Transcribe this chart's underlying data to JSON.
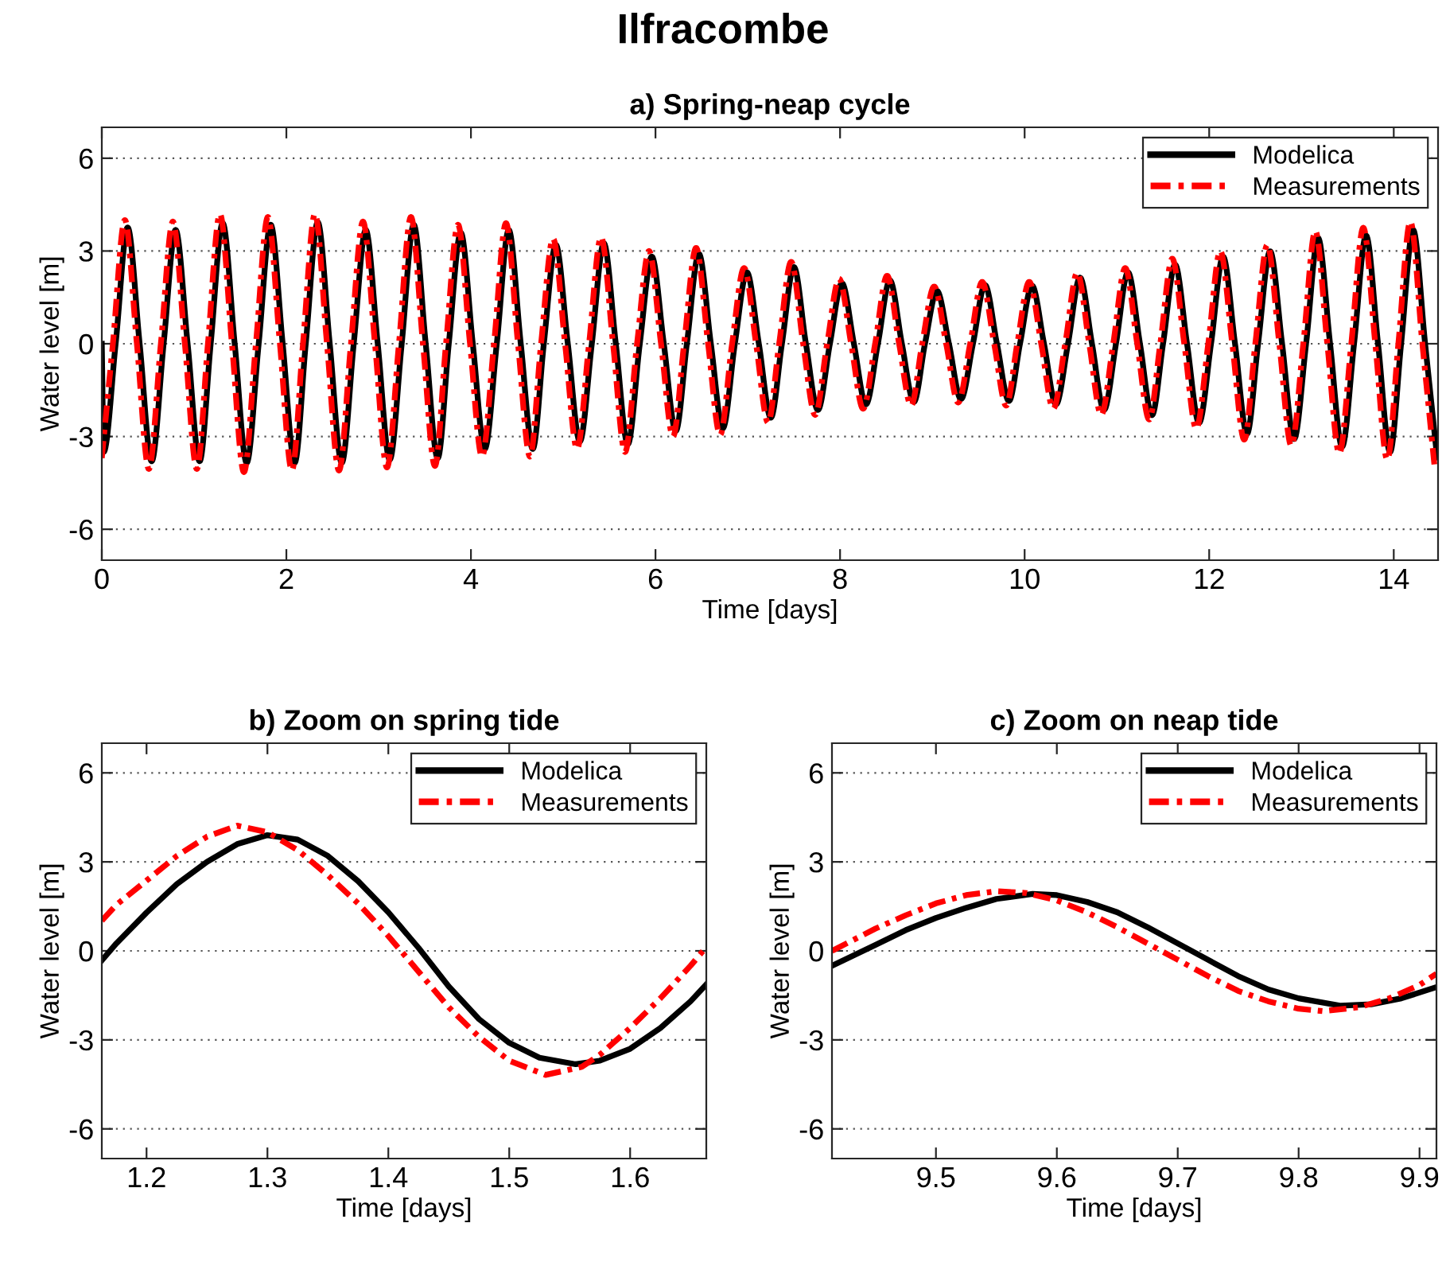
{
  "chart_data": [
    {
      "type": "line",
      "title": "Ilfracombe",
      "subtitle": "a) Spring-neap cycle",
      "xlabel": "Time [days]",
      "ylabel": "Water level [m]",
      "xlim": [
        0,
        14.48
      ],
      "ylim": [
        -7,
        7
      ],
      "xticks": [
        0,
        2,
        4,
        6,
        8,
        10,
        12,
        14
      ],
      "yticks": [
        -6,
        -3,
        0,
        3,
        6
      ],
      "grid": "y",
      "legend": "top right",
      "series": [
        {
          "name": "Modelica",
          "color": "#000000",
          "line_style": "solid",
          "x": [
            0,
            0.02,
            0.15,
            0.28,
            0.41,
            0.54,
            0.67,
            0.8,
            0.93,
            1.06,
            1.18,
            1.31,
            1.44,
            1.57,
            1.7,
            1.83,
            1.96,
            2.09,
            2.21,
            2.34,
            2.47,
            2.6,
            2.73,
            2.86,
            2.99,
            3.12,
            3.25,
            3.38,
            3.51,
            3.64,
            3.76,
            3.89,
            4.02,
            4.15,
            4.28,
            4.41,
            4.54,
            4.67,
            4.79,
            4.92,
            5.05,
            5.18,
            5.31,
            5.44,
            5.57,
            5.7,
            5.83,
            5.96,
            6.09,
            6.22,
            6.34,
            6.47,
            6.6,
            6.73,
            6.86,
            6.99,
            7.12,
            7.25,
            7.37,
            7.5,
            7.63,
            7.76,
            7.89,
            8.02,
            8.15,
            8.28,
            8.41,
            8.54,
            8.67,
            8.8,
            8.92,
            9.05,
            9.18,
            9.31,
            9.44,
            9.57,
            9.7,
            9.83,
            9.95,
            10.08,
            10.21,
            10.34,
            10.47,
            10.6,
            10.73,
            10.86,
            10.99,
            11.12,
            11.25,
            11.38,
            11.5,
            11.63,
            11.76,
            11.89,
            12.02,
            12.15,
            12.28,
            12.41,
            12.53,
            12.66,
            12.79,
            12.92,
            13.05,
            13.18,
            13.31,
            13.44,
            13.57,
            13.7,
            13.83,
            13.96,
            14.08,
            14.21,
            14.34,
            14.47
          ],
          "values": [
            0,
            -3.5,
            0,
            3.76,
            0,
            -3.8,
            0,
            3.68,
            0,
            -3.8,
            0,
            3.9,
            0,
            -3.85,
            0,
            3.85,
            0,
            -3.85,
            0,
            3.93,
            0,
            -3.85,
            0,
            3.68,
            0,
            -3.75,
            0,
            3.85,
            0,
            -3.7,
            0,
            3.59,
            0,
            -3.4,
            0,
            3.68,
            0,
            -3.4,
            0,
            3.2,
            0,
            -3.16,
            0,
            3.25,
            0,
            -3.25,
            0,
            2.82,
            0,
            -2.82,
            0,
            2.91,
            0,
            -2.73,
            0,
            2.31,
            0,
            -2.39,
            0,
            2.48,
            0,
            -2.14,
            0,
            1.96,
            0,
            -1.96,
            0,
            2.05,
            0,
            -1.88,
            0,
            1.71,
            0,
            -1.79,
            0,
            1.9,
            0,
            -1.85,
            0,
            1.88,
            0,
            -1.96,
            0,
            2.14,
            0,
            -2.14,
            0,
            2.31,
            0,
            -2.31,
            0,
            2.56,
            0,
            -2.56,
            0,
            2.82,
            0,
            -2.91,
            0,
            2.99,
            0,
            -3.08,
            0,
            3.42,
            0,
            -3.33,
            0,
            3.5,
            0,
            -3.5,
            0,
            3.68,
            0,
            -3.68
          ]
        },
        {
          "name": "Measurements",
          "color": "#ff0000",
          "line_style": "dashed",
          "x": [
            0,
            0.12,
            0.25,
            0.38,
            0.51,
            0.64,
            0.77,
            0.9,
            1.03,
            1.15,
            1.28,
            1.41,
            1.54,
            1.67,
            1.8,
            1.93,
            2.06,
            2.18,
            2.31,
            2.44,
            2.57,
            2.7,
            2.83,
            2.96,
            3.09,
            3.22,
            3.35,
            3.48,
            3.61,
            3.73,
            3.86,
            3.99,
            4.12,
            4.25,
            4.38,
            4.51,
            4.64,
            4.76,
            4.89,
            5.02,
            5.15,
            5.28,
            5.41,
            5.54,
            5.67,
            5.8,
            5.93,
            6.06,
            6.19,
            6.31,
            6.44,
            6.57,
            6.7,
            6.83,
            6.96,
            7.09,
            7.22,
            7.34,
            7.47,
            7.6,
            7.73,
            7.86,
            7.99,
            8.12,
            8.25,
            8.38,
            8.51,
            8.64,
            8.77,
            8.89,
            9.02,
            9.15,
            9.28,
            9.41,
            9.54,
            9.67,
            9.8,
            9.92,
            10.05,
            10.18,
            10.31,
            10.44,
            10.57,
            10.7,
            10.83,
            10.96,
            11.09,
            11.22,
            11.35,
            11.47,
            11.6,
            11.73,
            11.86,
            11.99,
            12.12,
            12.25,
            12.38,
            12.5,
            12.63,
            12.76,
            12.89,
            13.02,
            13.15,
            13.28,
            13.41,
            13.54,
            13.67,
            13.8,
            13.93,
            14.05,
            14.18,
            14.31,
            14.44
          ],
          "values": [
            -3.7,
            0,
            4.0,
            0,
            -4.05,
            0,
            3.95,
            0,
            -4.05,
            0,
            4.2,
            0,
            -4.15,
            0,
            4.1,
            0,
            -4.1,
            0,
            4.2,
            0,
            -4.1,
            0,
            3.95,
            0,
            -4.0,
            0,
            4.1,
            0,
            -3.95,
            0,
            3.85,
            0,
            -3.65,
            0,
            3.9,
            0,
            -3.65,
            0,
            3.4,
            0,
            -3.4,
            0,
            3.45,
            0,
            -3.5,
            0,
            3.0,
            0,
            -3.0,
            0,
            3.1,
            0,
            -2.95,
            0,
            2.45,
            0,
            -2.55,
            0,
            2.65,
            0,
            -2.3,
            0,
            2.1,
            0,
            -2.1,
            0,
            2.2,
            0,
            -2.0,
            0,
            1.85,
            0,
            -1.9,
            0,
            2.0,
            0,
            -2.0,
            0,
            2.0,
            0,
            -2.1,
            0,
            2.3,
            0,
            -2.3,
            0,
            2.45,
            0,
            -2.45,
            0,
            2.75,
            0,
            -2.75,
            0,
            3.0,
            0,
            -3.1,
            0,
            3.2,
            0,
            -3.3,
            0,
            3.65,
            0,
            -3.55,
            0,
            3.75,
            0,
            -3.75,
            0,
            3.95,
            0,
            -3.9
          ]
        }
      ]
    },
    {
      "type": "line",
      "subtitle": "b) Zoom on spring tide",
      "xlabel": "Time [days]",
      "ylabel": "Water level [m]",
      "xlim": [
        1.163,
        1.663
      ],
      "ylim": [
        -7,
        7
      ],
      "xticks": [
        1.2,
        1.3,
        1.4,
        1.5,
        1.6
      ],
      "yticks": [
        -6,
        -3,
        0,
        3,
        6
      ],
      "grid": "y",
      "legend": "top right",
      "series": [
        {
          "name": "Modelica",
          "color": "#000000",
          "line_style": "solid",
          "x": [
            1.163,
            1.175,
            1.2,
            1.225,
            1.25,
            1.275,
            1.3,
            1.325,
            1.35,
            1.375,
            1.4,
            1.425,
            1.45,
            1.475,
            1.5,
            1.525,
            1.555,
            1.575,
            1.6,
            1.625,
            1.65,
            1.663
          ],
          "values": [
            -0.32,
            0.25,
            1.29,
            2.25,
            3.0,
            3.6,
            3.9,
            3.75,
            3.2,
            2.35,
            1.3,
            0.1,
            -1.2,
            -2.3,
            -3.1,
            -3.6,
            -3.82,
            -3.7,
            -3.3,
            -2.6,
            -1.7,
            -1.13
          ]
        },
        {
          "name": "Measurements",
          "color": "#ff0000",
          "line_style": "dashed",
          "x": [
            1.163,
            1.175,
            1.2,
            1.225,
            1.25,
            1.275,
            1.3,
            1.325,
            1.35,
            1.375,
            1.4,
            1.425,
            1.45,
            1.475,
            1.5,
            1.53,
            1.56,
            1.575,
            1.6,
            1.625,
            1.65,
            1.663
          ],
          "values": [
            1.02,
            1.55,
            2.37,
            3.2,
            3.85,
            4.22,
            4.0,
            3.4,
            2.55,
            1.6,
            0.5,
            -0.7,
            -1.9,
            -2.9,
            -3.7,
            -4.18,
            -3.91,
            -3.5,
            -2.6,
            -1.6,
            -0.5,
            0.13
          ]
        }
      ]
    },
    {
      "type": "line",
      "subtitle": "c) Zoom on neap tide",
      "xlabel": "Time [days]",
      "ylabel": "Water level [m]",
      "xlim": [
        9.414,
        9.914
      ],
      "ylim": [
        -7,
        7
      ],
      "xticks": [
        9.5,
        9.6,
        9.7,
        9.8,
        9.9
      ],
      "yticks": [
        -6,
        -3,
        0,
        3,
        6
      ],
      "grid": "y",
      "legend": "top right",
      "series": [
        {
          "name": "Modelica",
          "color": "#000000",
          "line_style": "solid",
          "x": [
            9.414,
            9.45,
            9.475,
            9.5,
            9.525,
            9.55,
            9.58,
            9.6,
            9.625,
            9.65,
            9.675,
            9.7,
            9.725,
            9.75,
            9.775,
            9.8,
            9.835,
            9.86,
            9.885,
            9.914
          ],
          "values": [
            -0.5,
            0.2,
            0.7,
            1.11,
            1.45,
            1.75,
            1.92,
            1.88,
            1.65,
            1.3,
            0.8,
            0.25,
            -0.3,
            -0.85,
            -1.3,
            -1.6,
            -1.85,
            -1.8,
            -1.6,
            -1.22
          ]
        },
        {
          "name": "Measurements",
          "color": "#ff0000",
          "line_style": "dashed",
          "x": [
            9.414,
            9.45,
            9.475,
            9.5,
            9.525,
            9.55,
            9.575,
            9.6,
            9.625,
            9.65,
            9.675,
            9.7,
            9.725,
            9.75,
            9.775,
            9.8,
            9.82,
            9.85,
            9.875,
            9.9,
            9.914
          ],
          "values": [
            0,
            0.75,
            1.2,
            1.6,
            1.88,
            2.01,
            1.95,
            1.7,
            1.3,
            0.8,
            0.25,
            -0.3,
            -0.85,
            -1.35,
            -1.7,
            -1.95,
            -2.03,
            -1.9,
            -1.6,
            -1.15,
            -0.77
          ]
        }
      ]
    }
  ]
}
